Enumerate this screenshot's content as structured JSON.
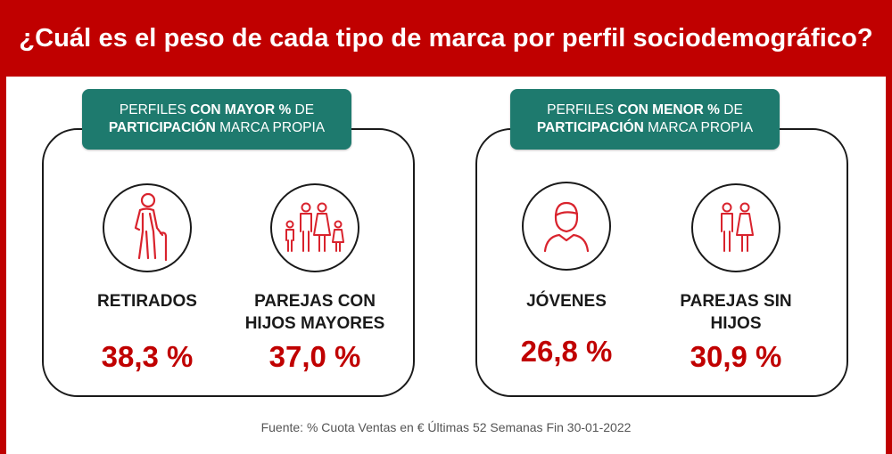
{
  "title": "¿Cuál es el peso de cada tipo de marca por perfil sociodemográfico?",
  "left_group": {
    "tag_line1_pre": "PERFILES ",
    "tag_line1_bold": "CON MAYOR %",
    "tag_line1_post": " DE",
    "tag_line2_bold": "PARTICIPACIÓN",
    "tag_line2_post": " MARCA PROPIA",
    "profiles": [
      {
        "label_line1": "RETIRADOS",
        "label_line2": "",
        "value": "38,3 %",
        "icon": "elderly-person-icon"
      },
      {
        "label_line1": "PAREJAS CON",
        "label_line2": "HIJOS MAYORES",
        "value": "37,0 %",
        "icon": "family-icon"
      }
    ]
  },
  "right_group": {
    "tag_line1_pre": "PERFILES ",
    "tag_line1_bold": "CON MENOR %",
    "tag_line1_post": " DE",
    "tag_line2_bold": "PARTICIPACIÓN",
    "tag_line2_post": " MARCA PROPIA",
    "profiles": [
      {
        "label_line1": "JÓVENES",
        "label_line2": "",
        "value": "26,8 %",
        "icon": "young-person-icon"
      },
      {
        "label_line1": "PAREJAS SIN",
        "label_line2": "HIJOS",
        "value": "30,9 %",
        "icon": "couple-icon"
      }
    ]
  },
  "source": "Fuente: % Cuota Ventas en € Últimas 52 Semanas Fin 30-01-2022",
  "colors": {
    "brand_red": "#c00000",
    "tag_green": "#1e7a6e",
    "icon_red": "#d9232d"
  }
}
